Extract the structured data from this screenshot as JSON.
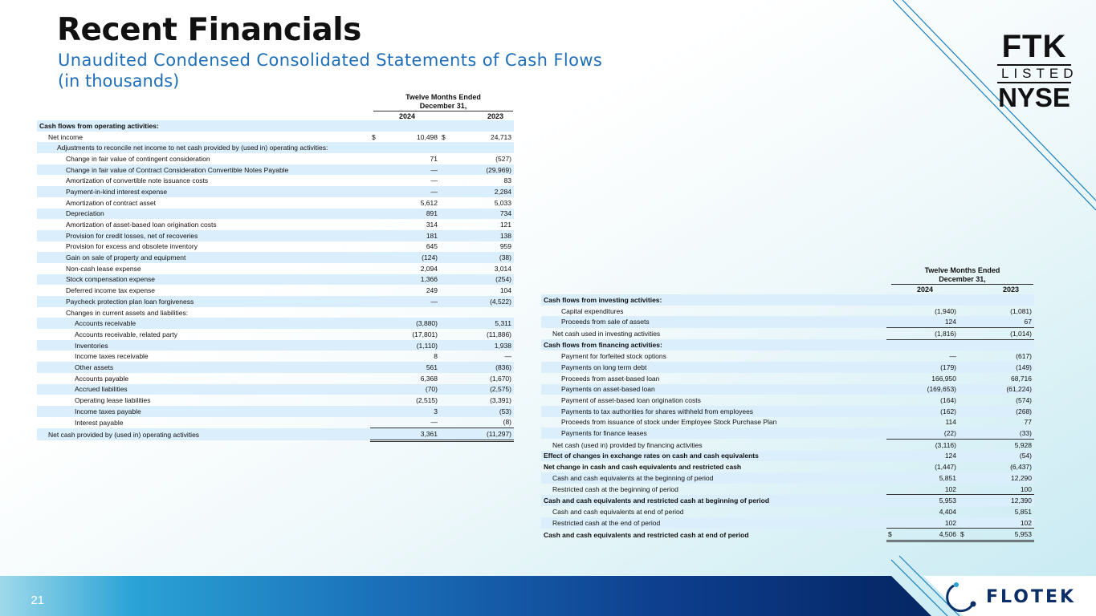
{
  "header": {
    "title": "Recent Financials",
    "subtitle": "Unaudited Condensed Consolidated Statements of Cash Flows",
    "units": "(in thousands)"
  },
  "badge": {
    "line1": "FTK",
    "line2": "LISTED",
    "line3": "NYSE"
  },
  "footer": {
    "page_prefix": "//",
    "page_number": "21",
    "logo_text": "FLOTEK",
    "logo_icon": "flotek-ring-icon"
  },
  "colors": {
    "title": "#111111",
    "subtitle": "#1f6fb8",
    "row_band": "#dbeefb",
    "footer_dark": "#062a6a"
  },
  "left_table": {
    "period_header": "Twelve Months Ended December 31,",
    "years": [
      "2024",
      "2023"
    ],
    "rows": [
      {
        "label": "Cash flows from operating activities:",
        "indent": 0,
        "bold": true,
        "v1": "",
        "v2": ""
      },
      {
        "label": "Net income",
        "indent": 1,
        "d1": "$",
        "v1": "10,498",
        "d2": "$",
        "v2": "24,713"
      },
      {
        "label": "Adjustments to reconcile net income to net cash provided by (used in) operating activities:",
        "indent": 2,
        "v1": "",
        "v2": ""
      },
      {
        "label": "Change in fair value of contingent consideration",
        "indent": 3,
        "v1": "71",
        "v2": "(527)"
      },
      {
        "label": "Change in fair value of Contract Consideration Convertible Notes Payable",
        "indent": 3,
        "v1": "—",
        "v2": "(29,969)"
      },
      {
        "label": "Amortization of convertible note issuance costs",
        "indent": 3,
        "v1": "—",
        "v2": "83"
      },
      {
        "label": "Payment-in-kind interest expense",
        "indent": 3,
        "v1": "—",
        "v2": "2,284"
      },
      {
        "label": "Amortization of contract asset",
        "indent": 3,
        "v1": "5,612",
        "v2": "5,033"
      },
      {
        "label": "Depreciation",
        "indent": 3,
        "v1": "891",
        "v2": "734"
      },
      {
        "label": "Amortization of asset-based loan origination costs",
        "indent": 3,
        "v1": "314",
        "v2": "121"
      },
      {
        "label": "Provision for credit losses, net of recoveries",
        "indent": 3,
        "v1": "181",
        "v2": "138"
      },
      {
        "label": "Provision for excess and obsolete inventory",
        "indent": 3,
        "v1": "645",
        "v2": "959"
      },
      {
        "label": "Gain on sale of property and equipment",
        "indent": 3,
        "v1": "(124)",
        "v2": "(38)"
      },
      {
        "label": "Non-cash lease expense",
        "indent": 3,
        "v1": "2,094",
        "v2": "3,014"
      },
      {
        "label": "Stock compensation expense",
        "indent": 3,
        "v1": "1,366",
        "v2": "(254)"
      },
      {
        "label": "Deferred income tax expense",
        "indent": 3,
        "v1": "249",
        "v2": "104"
      },
      {
        "label": "Paycheck protection plan loan forgiveness",
        "indent": 3,
        "v1": "—",
        "v2": "(4,522)"
      },
      {
        "label": "Changes in current assets and liabilities:",
        "indent": 3,
        "v1": "",
        "v2": ""
      },
      {
        "label": "Accounts receivable",
        "indent": 4,
        "v1": "(3,880)",
        "v2": "5,311"
      },
      {
        "label": "Accounts receivable, related party",
        "indent": 4,
        "v1": "(17,801)",
        "v2": "(11,886)"
      },
      {
        "label": "Inventories",
        "indent": 4,
        "v1": "(1,110)",
        "v2": "1,938"
      },
      {
        "label": "Income taxes receivable",
        "indent": 4,
        "v1": "8",
        "v2": "—"
      },
      {
        "label": "Other assets",
        "indent": 4,
        "v1": "561",
        "v2": "(836)"
      },
      {
        "label": "Accounts payable",
        "indent": 4,
        "v1": "6,368",
        "v2": "(1,670)"
      },
      {
        "label": "Accrued liabilities",
        "indent": 4,
        "v1": "(70)",
        "v2": "(2,575)"
      },
      {
        "label": "Operating lease liabilities",
        "indent": 4,
        "v1": "(2,515)",
        "v2": "(3,391)"
      },
      {
        "label": "Income taxes payable",
        "indent": 4,
        "v1": "3",
        "v2": "(53)"
      },
      {
        "label": "Interest payable",
        "indent": 4,
        "v1": "—",
        "v2": "(8)",
        "endsum": true
      },
      {
        "label": "Net cash provided by (used in) operating activities",
        "indent": 1,
        "v1": "3,361",
        "v2": "(11,297)",
        "total": true
      }
    ]
  },
  "right_table": {
    "period_header": "Twelve Months Ended December 31,",
    "years": [
      "2024",
      "2023"
    ],
    "rows": [
      {
        "label": "Cash flows from investing activities:",
        "indent": 0,
        "bold": true,
        "v1": "",
        "v2": ""
      },
      {
        "label": "Capital expenditures",
        "indent": 2,
        "v1": "(1,940)",
        "v2": "(1,081)"
      },
      {
        "label": "Proceeds from sale of assets",
        "indent": 2,
        "v1": "124",
        "v2": "67",
        "endsum": true
      },
      {
        "label": "Net cash used in investing activities",
        "indent": 1,
        "v1": "(1,816)",
        "v2": "(1,014)",
        "endsum": true
      },
      {
        "label": "Cash flows from financing activities:",
        "indent": 0,
        "bold": true,
        "v1": "",
        "v2": ""
      },
      {
        "label": "Payment for forfeited stock options",
        "indent": 2,
        "v1": "—",
        "v2": "(617)"
      },
      {
        "label": "Payments on long term debt",
        "indent": 2,
        "v1": "(179)",
        "v2": "(149)"
      },
      {
        "label": "Proceeds from asset-based loan",
        "indent": 2,
        "v1": "166,950",
        "v2": "68,716"
      },
      {
        "label": "Payments on asset-based loan",
        "indent": 2,
        "v1": "(169,653)",
        "v2": "(61,224)"
      },
      {
        "label": "Payment of asset-based loan origination costs",
        "indent": 2,
        "v1": "(164)",
        "v2": "(574)"
      },
      {
        "label": "Payments to tax authorities for shares withheld from employees",
        "indent": 2,
        "v1": "(162)",
        "v2": "(268)"
      },
      {
        "label": "Proceeds from issuance of stock under Employee Stock Purchase Plan",
        "indent": 2,
        "v1": "114",
        "v2": "77"
      },
      {
        "label": "Payments for finance leases",
        "indent": 2,
        "v1": "(22)",
        "v2": "(33)",
        "endsum": true
      },
      {
        "label": "Net cash (used in) provided by financing activities",
        "indent": 1,
        "v1": "(3,116)",
        "v2": "5,928"
      },
      {
        "label": "Effect of changes in exchange rates on cash and cash equivalents",
        "indent": 0,
        "bold": true,
        "v1": "124",
        "v2": "(54)"
      },
      {
        "label": "Net change in cash and cash equivalents and restricted cash",
        "indent": 0,
        "bold": true,
        "v1": "(1,447)",
        "v2": "(6,437)"
      },
      {
        "label": "Cash and cash equivalents at the beginning of period",
        "indent": 1,
        "v1": "5,851",
        "v2": "12,290"
      },
      {
        "label": "Restricted cash at the beginning of period",
        "indent": 1,
        "v1": "102",
        "v2": "100",
        "endsum": true
      },
      {
        "label": "Cash and cash equivalents and restricted cash at beginning of period",
        "indent": 0,
        "bold": true,
        "v1": "5,953",
        "v2": "12,390"
      },
      {
        "label": "Cash and cash equivalents at end of period",
        "indent": 1,
        "v1": "4,404",
        "v2": "5,851"
      },
      {
        "label": "Restricted cash at the end of period",
        "indent": 1,
        "v1": "102",
        "v2": "102",
        "endsum": true
      },
      {
        "label": "Cash and cash equivalents and restricted cash at end of period",
        "indent": 0,
        "bold": true,
        "d1": "$",
        "v1": "4,506",
        "d2": "$",
        "v2": "5,953",
        "total": true
      }
    ]
  }
}
